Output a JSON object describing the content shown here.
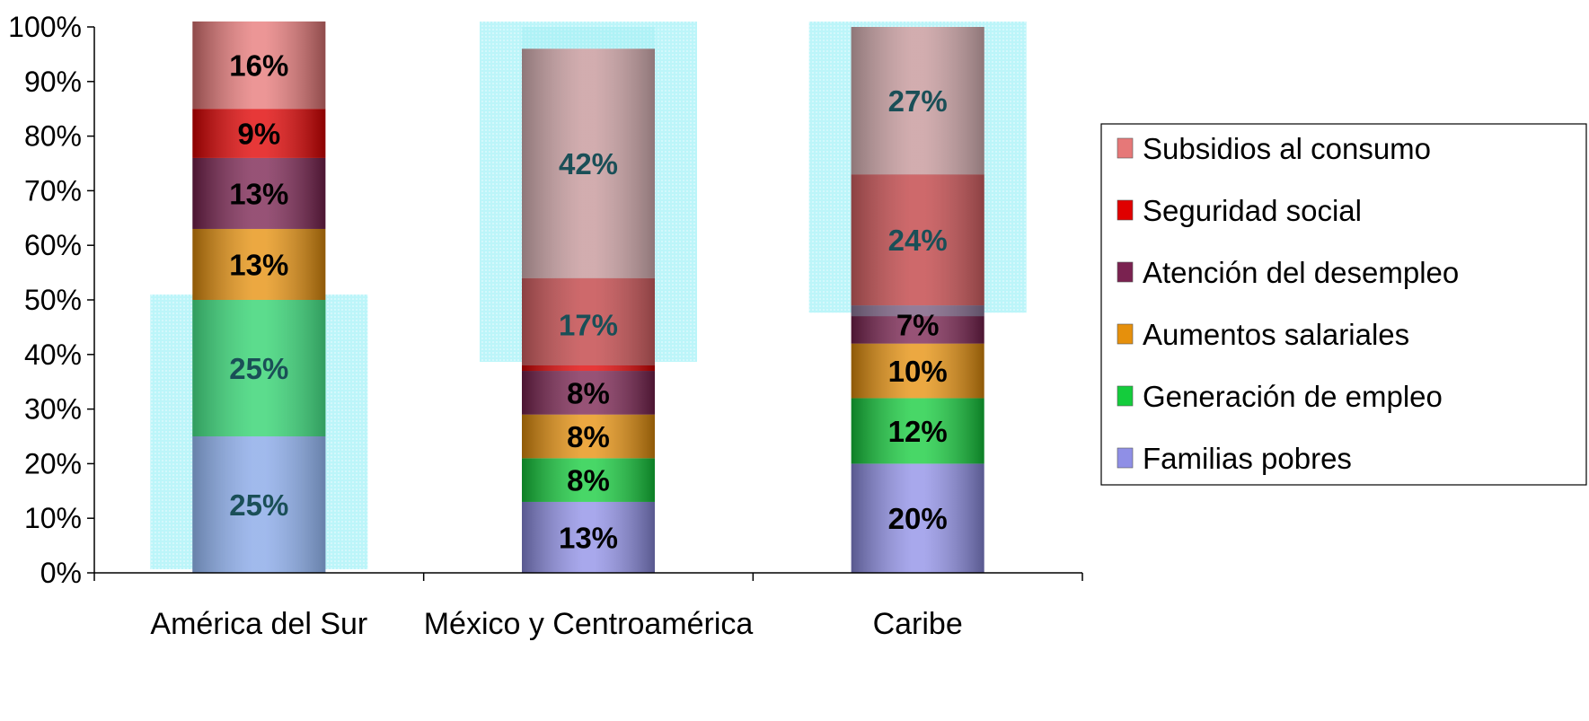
{
  "chart_data": {
    "type": "bar",
    "stacked": true,
    "categories": [
      "América del Sur",
      "México y Centroamérica",
      "Caribe"
    ],
    "yticks": [
      "0%",
      "10%",
      "20%",
      "30%",
      "40%",
      "50%",
      "60%",
      "70%",
      "80%",
      "90%",
      "100%"
    ],
    "ylim": [
      0,
      100
    ],
    "grid": false,
    "legend_position": "right",
    "series": [
      {
        "name": "Familias pobres",
        "color": "#8f8fe6",
        "values": [
          25,
          13,
          20
        ],
        "labels": [
          "25%",
          "13%",
          "20%"
        ]
      },
      {
        "name": "Generación de empleo",
        "color": "#14cc3c",
        "values": [
          25,
          8,
          12
        ],
        "labels": [
          "25%",
          "8%",
          "12%"
        ]
      },
      {
        "name": "Aumentos salariales",
        "color": "#e6900c",
        "values": [
          13,
          8,
          10
        ],
        "labels": [
          "13%",
          "8%",
          "10%"
        ]
      },
      {
        "name": "Atención del desempleo",
        "color": "#7a2250",
        "values": [
          13,
          8,
          7
        ],
        "labels": [
          "13%",
          "8%",
          "7%"
        ]
      },
      {
        "name": "Seguridad social",
        "color": "#e00000",
        "values": [
          9,
          17,
          24
        ],
        "labels": [
          "9%",
          "17%",
          "24%"
        ]
      },
      {
        "name": "Subsidios al consumo",
        "color": "#e67878",
        "values": [
          16,
          42,
          27
        ],
        "labels": [
          "16%",
          "42%",
          "27%"
        ]
      }
    ],
    "highlight_regions": [
      {
        "category": "América del Sur",
        "y_range": [
          0,
          50
        ]
      },
      {
        "category": "México y Centroamérica",
        "y_range": [
          38,
          100
        ]
      },
      {
        "category": "Caribe",
        "y_range": [
          47,
          100
        ]
      }
    ]
  }
}
